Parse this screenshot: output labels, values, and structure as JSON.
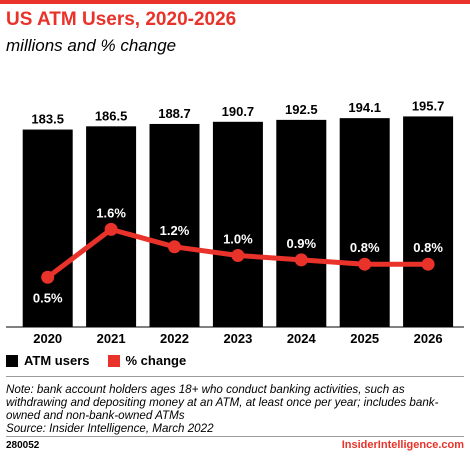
{
  "header": {
    "title": "US ATM Users, 2020-2026",
    "subtitle": "millions and % change"
  },
  "chart_data": {
    "type": "bar",
    "categories": [
      "2020",
      "2021",
      "2022",
      "2023",
      "2024",
      "2025",
      "2026"
    ],
    "series": [
      {
        "name": "ATM users",
        "type": "bar",
        "color": "#000000",
        "values": [
          183.5,
          186.5,
          188.7,
          190.7,
          192.5,
          194.1,
          195.7
        ],
        "labels": [
          "183.5",
          "186.5",
          "188.7",
          "190.7",
          "192.5",
          "194.1",
          "195.7"
        ]
      },
      {
        "name": "% change",
        "type": "line",
        "color": "#e8322a",
        "values": [
          0.5,
          1.6,
          1.2,
          1.0,
          0.9,
          0.8,
          0.8
        ],
        "labels": [
          "0.5%",
          "1.6%",
          "1.2%",
          "1.0%",
          "0.9%",
          "0.8%",
          "0.8%"
        ]
      }
    ],
    "grid": false,
    "legend_position": "bottom-left"
  },
  "legend": {
    "items": [
      {
        "label": "ATM users",
        "color": "#000000"
      },
      {
        "label": "% change",
        "color": "#e8322a"
      }
    ]
  },
  "footer": {
    "note": "Note: bank account holders ages 18+ who conduct banking activities, such as withdrawing and depositing money at an ATM, at least once per year; includes bank-owned and non-bank-owned ATMs",
    "source": "Source: Insider Intelligence, March 2022",
    "code": "280052",
    "brand": "InsiderIntelligence.com"
  }
}
